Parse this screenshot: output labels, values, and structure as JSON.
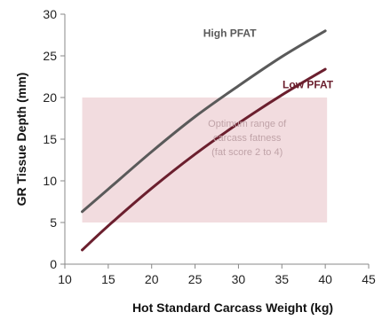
{
  "chart_data": {
    "type": "line",
    "xlabel": "Hot Standard Carcass Weight (kg)",
    "ylabel": "GR Tissue Depth (mm)",
    "xlim": [
      10,
      45
    ],
    "ylim": [
      0,
      30
    ],
    "xticks": [
      "10",
      "15",
      "20",
      "25",
      "30",
      "35",
      "40",
      "45"
    ],
    "yticks": [
      "0",
      "5",
      "10",
      "15",
      "20",
      "25",
      "30"
    ],
    "grid": false,
    "series": [
      {
        "name": "High PFAT",
        "color": "#5a5a5a",
        "x": [
          12,
          15,
          20,
          25,
          30,
          35,
          40
        ],
        "y": [
          6.3,
          9.0,
          13.5,
          17.7,
          21.4,
          24.9,
          28.0
        ]
      },
      {
        "name": "Low PFAT",
        "color": "#6b1f2e",
        "x": [
          12,
          15,
          20,
          25,
          30,
          35,
          40
        ],
        "y": [
          1.7,
          4.6,
          9.1,
          13.2,
          16.9,
          20.3,
          23.4
        ]
      }
    ],
    "shaded_region": {
      "y_from": 5,
      "y_to": 20,
      "color": "#f2dcdf",
      "label_lines": [
        "Optimum range of",
        "carcass fatness",
        "(fat score 2 to 4)"
      ],
      "label_color": "#c0a3a8"
    }
  }
}
